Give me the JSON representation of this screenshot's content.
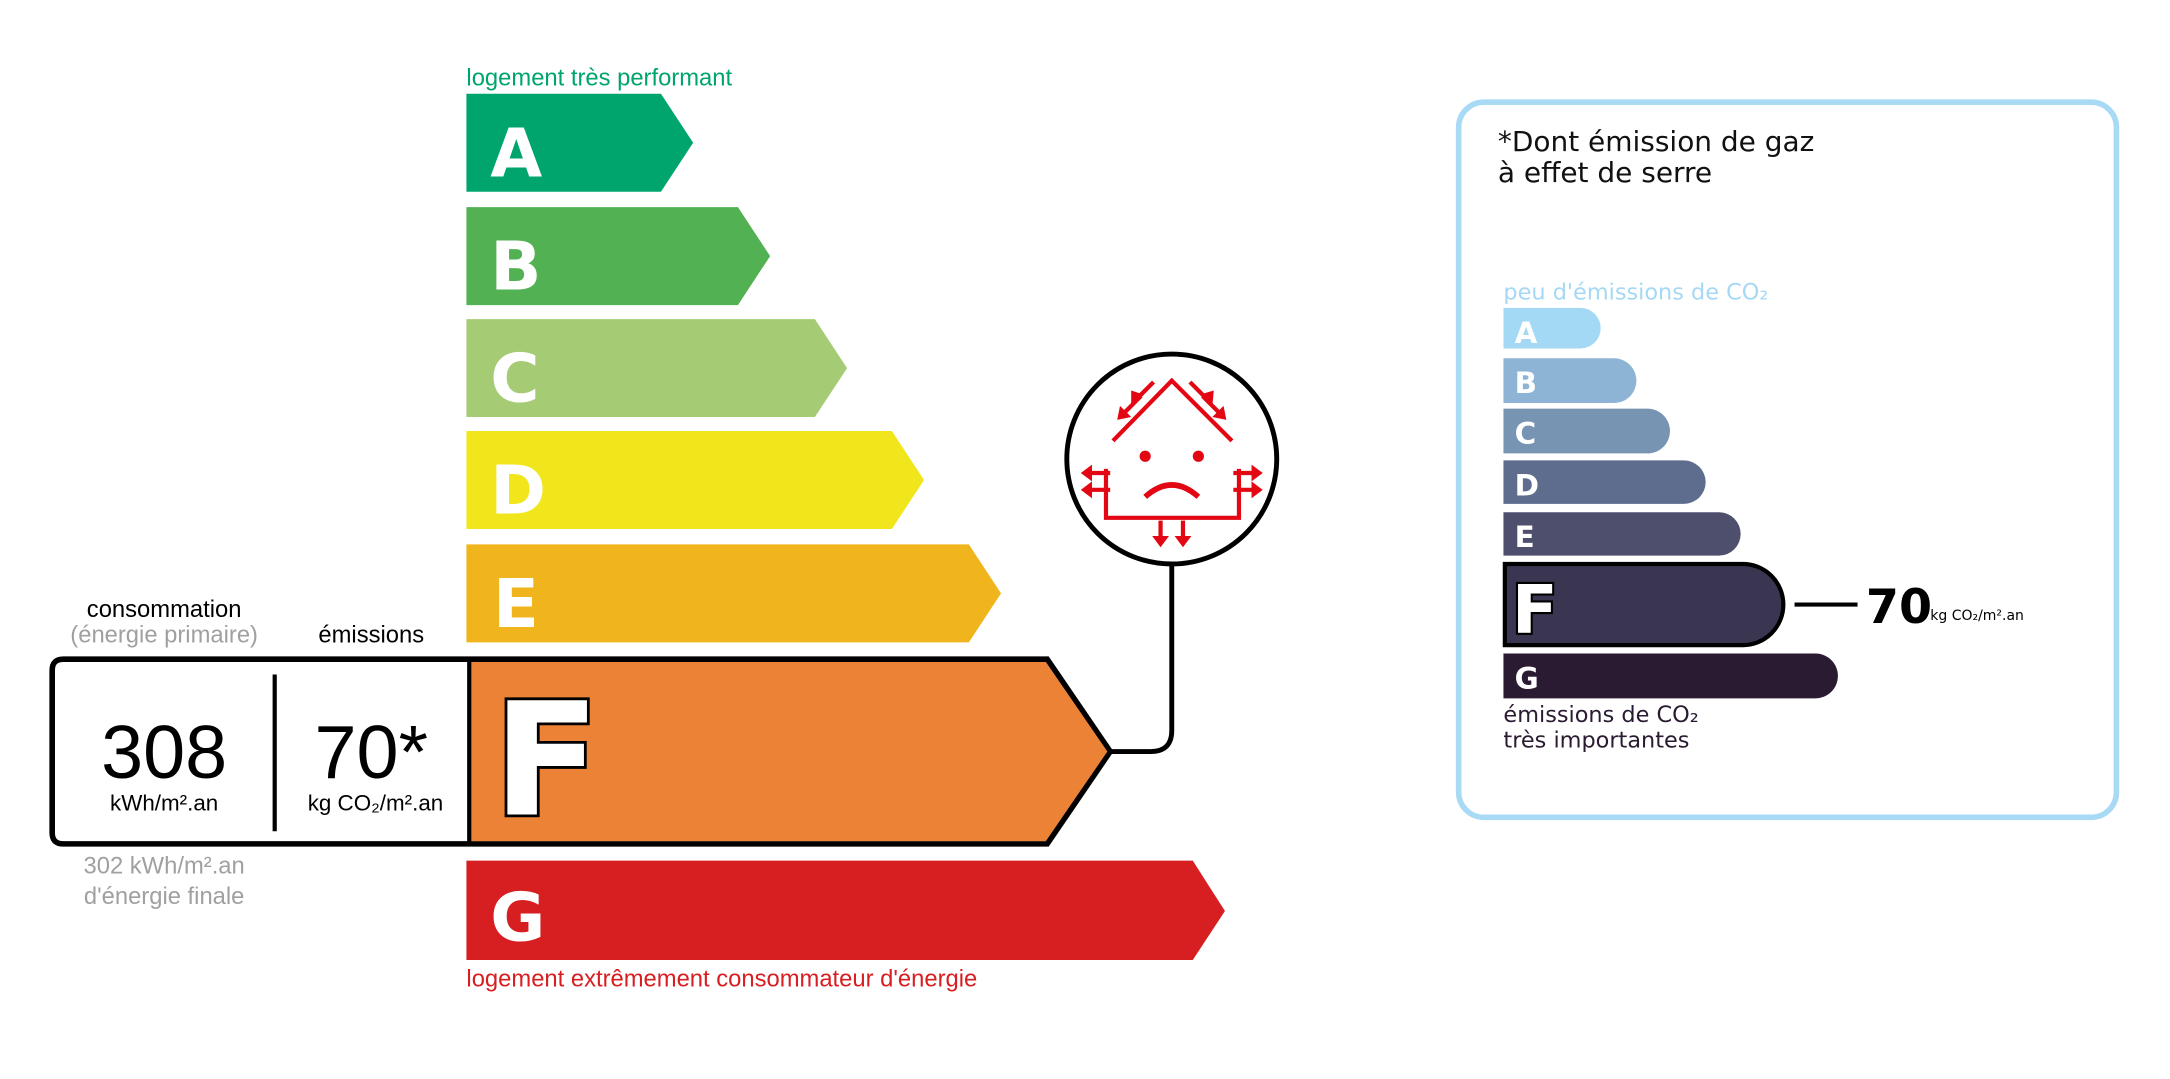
{
  "energy": {
    "top_label": "logement très performant",
    "bottom_label": "logement extrêmement consommateur d'énergie",
    "classes": [
      {
        "letter": "A",
        "color": "#00a56d"
      },
      {
        "letter": "B",
        "color": "#52b153"
      },
      {
        "letter": "C",
        "color": "#a5cc74"
      },
      {
        "letter": "D",
        "color": "#f1e61c"
      },
      {
        "letter": "E",
        "color": "#f0b41c"
      },
      {
        "letter": "F",
        "color": "#eb8235"
      },
      {
        "letter": "G",
        "color": "#d71e20"
      }
    ],
    "current_class": "F",
    "consumption_label": "consommation",
    "consumption_sublabel": "(énergie primaire)",
    "emissions_label": "émissions",
    "consumption_value": "308",
    "consumption_unit": "kWh/m².an",
    "emissions_value": "70*",
    "emissions_unit": "kg CO₂/m².an",
    "final_energy_value": "302 kWh/m².an",
    "final_energy_label": "d'énergie finale",
    "icon": "sad-house-heat-loss-icon",
    "accent_top": "#00a56d",
    "accent_bottom": "#d71e20"
  },
  "ges": {
    "title_line1": "*Dont émission de gaz",
    "title_line2": "à effet de serre",
    "top_label": "peu d'émissions de CO₂",
    "bottom_label_line1": "émissions de CO₂",
    "bottom_label_line2": "très importantes",
    "classes": [
      {
        "letter": "A",
        "color": "#a4d9f6"
      },
      {
        "letter": "B",
        "color": "#8db4d4"
      },
      {
        "letter": "C",
        "color": "#7794b3"
      },
      {
        "letter": "D",
        "color": "#5e6d8e"
      },
      {
        "letter": "E",
        "color": "#4d4f6d"
      },
      {
        "letter": "F",
        "color": "#3a3651"
      },
      {
        "letter": "G",
        "color": "#2a1a32"
      }
    ],
    "current_class": "F",
    "value": "70",
    "unit": "kg CO₂/m².an",
    "border_color": "#a8daf5"
  }
}
